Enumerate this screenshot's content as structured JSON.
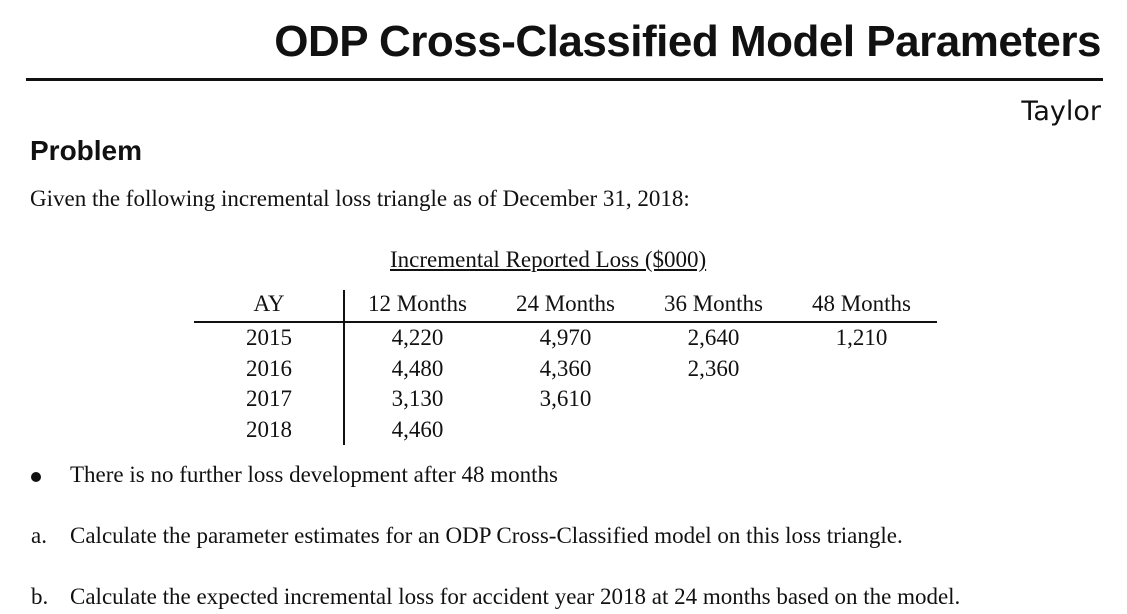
{
  "header": {
    "title": "ODP Cross-Classified Model Parameters",
    "author": "Taylor"
  },
  "section": {
    "heading": "Problem"
  },
  "intro": "Given the following incremental loss triangle as of December 31, 2018:",
  "table": {
    "caption": "Incremental Reported Loss ($000)",
    "row_header_label": "AY",
    "columns": [
      "12 Months",
      "24 Months",
      "36 Months",
      "48 Months"
    ],
    "rows": [
      {
        "ay": "2015",
        "values": [
          "4,220",
          "4,970",
          "2,640",
          "1,210"
        ]
      },
      {
        "ay": "2016",
        "values": [
          "4,480",
          "4,360",
          "2,360"
        ]
      },
      {
        "ay": "2017",
        "values": [
          "3,130",
          "3,610"
        ]
      },
      {
        "ay": "2018",
        "values": [
          "4,460"
        ]
      }
    ]
  },
  "bullets": [
    "There is no further loss development after 48 months"
  ],
  "questions": [
    {
      "marker": "a.",
      "text": "Calculate the parameter estimates for an ODP Cross-Classified model on this loss triangle."
    },
    {
      "marker": "b.",
      "text": "Calculate the expected incremental loss for accident year 2018 at 24 months based on the model."
    }
  ]
}
